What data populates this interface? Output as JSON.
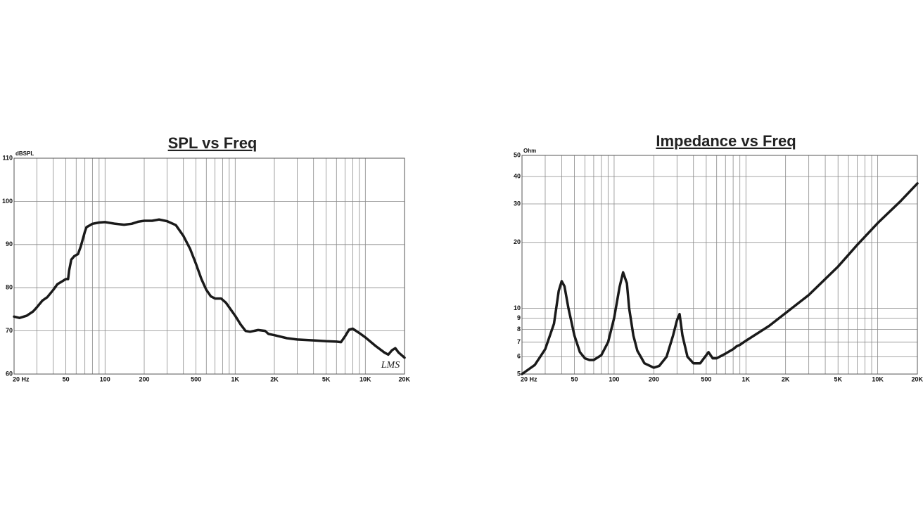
{
  "chart_data": [
    {
      "type": "line",
      "title": "SPL vs Freq",
      "y_label": "dBSPL",
      "watermark": "LMS",
      "x_scale": "log",
      "y_scale": "linear",
      "grid": true,
      "xlim": [
        20,
        20000
      ],
      "ylim": [
        60,
        110
      ],
      "xticks": [
        {
          "value": 20,
          "label": "20 Hz"
        },
        50,
        100,
        200,
        500,
        {
          "value": 1000,
          "label": "1K"
        },
        {
          "value": 2000,
          "label": "2K"
        },
        {
          "value": 5000,
          "label": "5K"
        },
        {
          "value": 10000,
          "label": "10K"
        },
        {
          "value": 20000,
          "label": "20K"
        }
      ],
      "xgrid": [
        30,
        40,
        60,
        70,
        80,
        90,
        300,
        400,
        600,
        700,
        800,
        900,
        3000,
        4000,
        6000,
        7000,
        8000,
        9000
      ],
      "yticks": [
        60,
        70,
        80,
        90,
        100,
        110
      ],
      "x": [
        20,
        22,
        25,
        28,
        30,
        33,
        36,
        40,
        43,
        47,
        50,
        52,
        53,
        55,
        58,
        62,
        65,
        70,
        72,
        80,
        90,
        100,
        120,
        140,
        160,
        180,
        200,
        230,
        260,
        300,
        350,
        400,
        450,
        500,
        550,
        600,
        650,
        700,
        780,
        850,
        1000,
        1100,
        1200,
        1300,
        1500,
        1700,
        1800,
        2000,
        2500,
        3000,
        4000,
        5000,
        6000,
        6500,
        7000,
        7500,
        8000,
        9000,
        10000,
        12000,
        14000,
        15000,
        16000,
        17000,
        18000,
        20000
      ],
      "series": [
        {
          "color": "#1a1a1a",
          "values": [
            73.3,
            73,
            73.5,
            74.5,
            75.5,
            77,
            77.8,
            79.5,
            80.8,
            81.5,
            82,
            82,
            84,
            86.5,
            87.3,
            87.8,
            89.5,
            93,
            94,
            94.8,
            95.1,
            95.2,
            94.8,
            94.6,
            94.8,
            95.3,
            95.5,
            95.5,
            95.8,
            95.4,
            94.5,
            92,
            89,
            85.5,
            82,
            79.5,
            78,
            77.5,
            77.5,
            76.5,
            73.5,
            71.5,
            70,
            69.8,
            70.2,
            70,
            69.3,
            69,
            68.3,
            68,
            67.8,
            67.6,
            67.5,
            67.4,
            68.8,
            70.3,
            70.5,
            69.5,
            68.5,
            66.5,
            65,
            64.5,
            65.5,
            66,
            65,
            63.8
          ]
        }
      ]
    },
    {
      "type": "line",
      "title": "Impedance vs Freq",
      "y_label": "Ohm",
      "x_scale": "log",
      "y_scale": "log",
      "grid": true,
      "xlim": [
        20,
        20000
      ],
      "ylim": [
        5,
        50
      ],
      "xticks": [
        {
          "value": 20,
          "label": "20 Hz"
        },
        50,
        100,
        200,
        500,
        {
          "value": 1000,
          "label": "1K"
        },
        {
          "value": 2000,
          "label": "2K"
        },
        {
          "value": 5000,
          "label": "5K"
        },
        {
          "value": 10000,
          "label": "10K"
        },
        {
          "value": 20000,
          "label": "20K"
        }
      ],
      "xgrid": [
        30,
        40,
        60,
        70,
        80,
        90,
        300,
        400,
        600,
        700,
        800,
        900,
        3000,
        4000,
        6000,
        7000,
        8000,
        9000
      ],
      "yticks": [
        5,
        6,
        7,
        8,
        9,
        10,
        20,
        30,
        40,
        50
      ],
      "x": [
        20,
        25,
        30,
        35,
        38,
        40,
        42,
        45,
        50,
        55,
        60,
        65,
        70,
        80,
        90,
        100,
        110,
        117,
        125,
        130,
        140,
        150,
        170,
        200,
        220,
        250,
        280,
        300,
        314,
        330,
        360,
        400,
        450,
        480,
        520,
        560,
        600,
        700,
        800,
        850,
        900,
        1000,
        1500,
        2000,
        3000,
        5000,
        7000,
        10000,
        15000,
        20000
      ],
      "series": [
        {
          "color": "#1a1a1a",
          "values": [
            5.0,
            5.5,
            6.5,
            8.5,
            12,
            13.3,
            12.6,
            10,
            7.5,
            6.3,
            5.9,
            5.8,
            5.8,
            6.1,
            7,
            9,
            12.5,
            14.6,
            13,
            10,
            7.5,
            6.4,
            5.6,
            5.35,
            5.45,
            6,
            7.5,
            8.8,
            9.4,
            7.5,
            6,
            5.6,
            5.6,
            5.9,
            6.3,
            5.9,
            5.9,
            6.2,
            6.5,
            6.7,
            6.8,
            7.1,
            8.3,
            9.5,
            11.5,
            15.5,
            19.5,
            24.5,
            31,
            37.2
          ]
        }
      ]
    }
  ]
}
